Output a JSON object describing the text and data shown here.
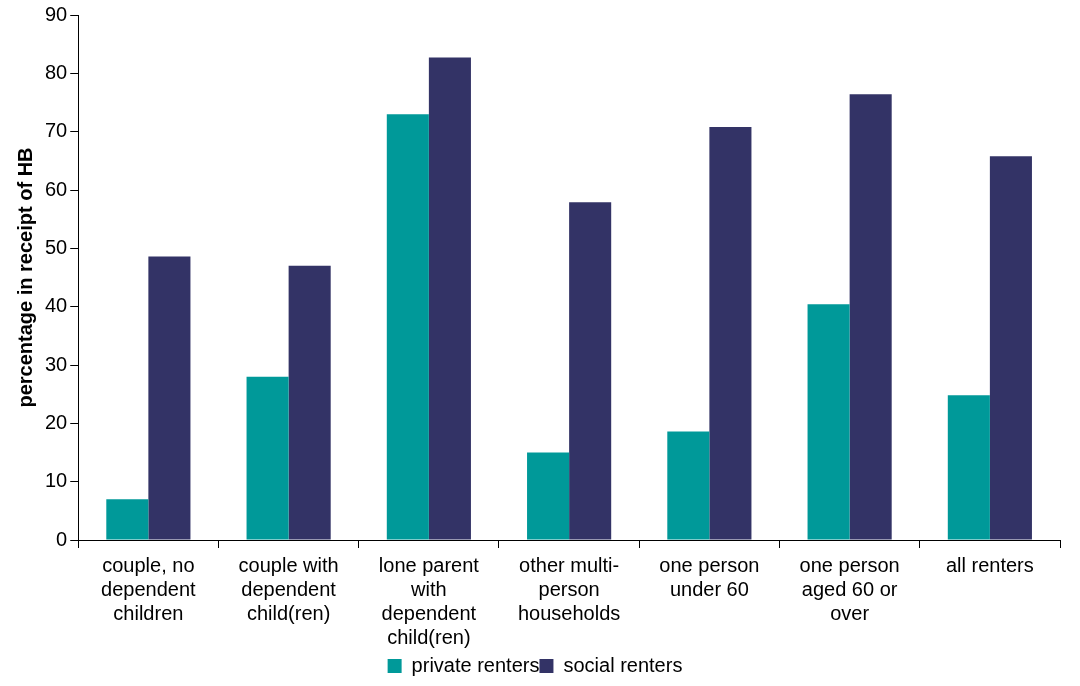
{
  "chart_data": {
    "type": "bar",
    "ylabel": "percentage in receipt of HB",
    "categories": [
      "couple, no dependent children",
      "couple with dependent child(ren)",
      "lone parent with dependent child(ren)",
      "other multi-person households",
      "one person under 60",
      "one person aged 60 or over",
      "all renters"
    ],
    "series": [
      {
        "name": "private renters",
        "color": "#009999",
        "values": [
          7,
          28,
          73,
          15,
          18.6,
          40.4,
          24.8
        ]
      },
      {
        "name": "social renters",
        "color": "#333366",
        "values": [
          48.6,
          47,
          82.7,
          57.9,
          70.8,
          76.4,
          65.8
        ]
      }
    ],
    "ylim": [
      0,
      90
    ],
    "yticks": [
      0,
      10,
      20,
      30,
      40,
      50,
      60,
      70,
      80,
      90
    ],
    "grid": false,
    "legend": "bottom"
  }
}
